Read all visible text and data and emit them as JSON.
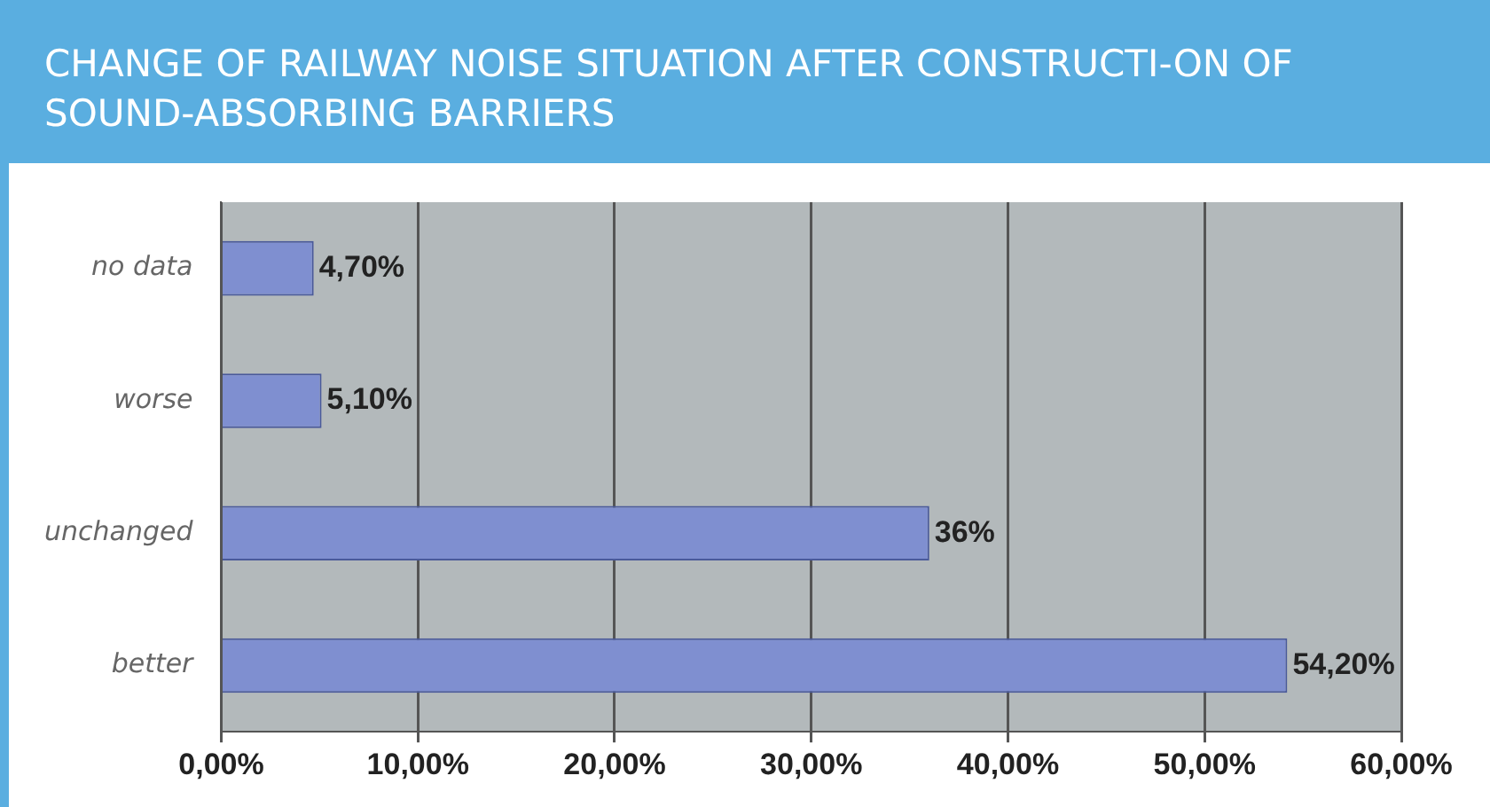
{
  "chart_data": {
    "type": "bar",
    "title": "CHANGE OF RAILWAY NOISE SITUATION AFTER CONSTRUCTI-ON OF SOUND-ABSORBING BARRIERS",
    "orientation": "horizontal",
    "categories": [
      "no data",
      "worse",
      "unchanged",
      "better"
    ],
    "values": [
      4.7,
      5.1,
      36,
      54.2
    ],
    "value_labels": [
      "4,70%",
      "5,10%",
      "36%",
      "54,20%"
    ],
    "color": "#7f8fd0",
    "xlim": [
      0,
      60
    ],
    "xticks": [
      {
        "value": 0,
        "label": "0,00%"
      },
      {
        "value": 10,
        "label": "10,00%"
      },
      {
        "value": 20,
        "label": "20,00%"
      },
      {
        "value": 30,
        "label": "30,00%"
      },
      {
        "value": 40,
        "label": "40,00%"
      },
      {
        "value": 50,
        "label": "50,00%"
      },
      {
        "value": 60,
        "label": "60,00%"
      }
    ],
    "grid": "x",
    "legend": false
  }
}
